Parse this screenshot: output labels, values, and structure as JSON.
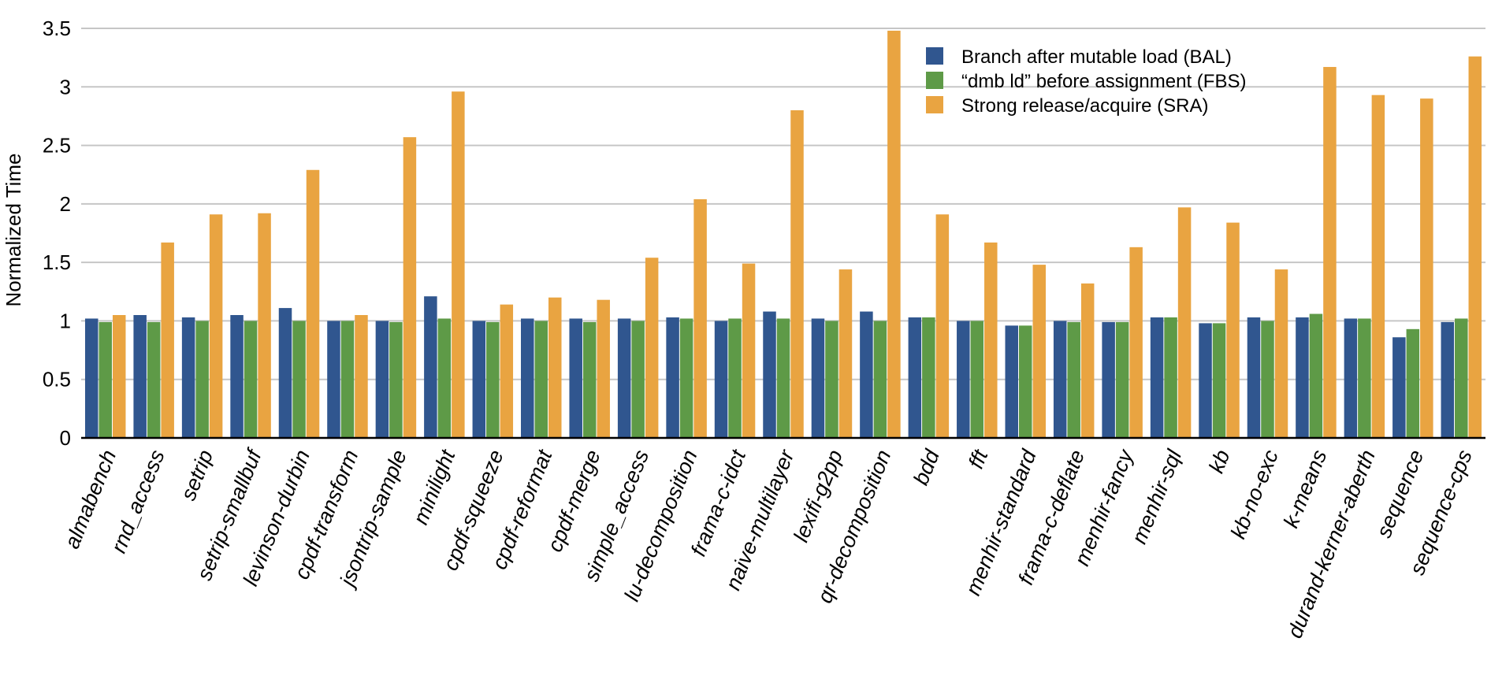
{
  "chart_data": {
    "type": "bar",
    "ylabel": "Normalized Time",
    "xlabel": "",
    "ylim": [
      0,
      3.5
    ],
    "yticks": [
      0,
      0.5,
      1,
      1.5,
      2,
      2.5,
      3,
      3.5
    ],
    "ytick_labels": [
      "0",
      "0.5",
      "1",
      "1.5",
      "2",
      "2.5",
      "3",
      "3.5"
    ],
    "grid": true,
    "legend_position": "top-right",
    "categories": [
      "almabench",
      "rnd_access",
      "setrip",
      "setrip-smallbuf",
      "levinson-durbin",
      "cpdf-transform",
      "jsontrip-sample",
      "minilight",
      "cpdf-squeeze",
      "cpdf-reformat",
      "cpdf-merge",
      "simple_access",
      "lu-decomposition",
      "frama-c-idct",
      "naive-multilayer",
      "lexifi-g2pp",
      "qr-decomposition",
      "bdd",
      "fft",
      "menhir-standard",
      "frama-c-deflate",
      "menhir-fancy",
      "menhir-sql",
      "kb",
      "kb-no-exc",
      "k-means",
      "durand-kerner-aberth",
      "sequence",
      "sequence-cps"
    ],
    "series": [
      {
        "name": "Branch after mutable load (BAL)",
        "color": "#30568f",
        "values": [
          1.02,
          1.05,
          1.03,
          1.05,
          1.11,
          1.0,
          1.0,
          1.21,
          1.0,
          1.02,
          1.02,
          1.02,
          1.03,
          1.0,
          1.08,
          1.02,
          1.08,
          1.03,
          1.0,
          0.96,
          1.0,
          0.99,
          1.03,
          0.98,
          1.03,
          1.03,
          1.02,
          0.86,
          0.99
        ]
      },
      {
        "name": "“dmb ld” before assignment (FBS)",
        "color": "#5e9a47",
        "values": [
          0.99,
          0.99,
          1.0,
          1.0,
          1.0,
          1.0,
          0.99,
          1.02,
          0.99,
          1.0,
          0.99,
          1.0,
          1.02,
          1.02,
          1.02,
          1.0,
          1.0,
          1.03,
          1.0,
          0.96,
          0.99,
          0.99,
          1.03,
          0.98,
          1.0,
          1.06,
          1.02,
          0.93,
          1.02
        ]
      },
      {
        "name": "Strong release/acquire (SRA)",
        "color": "#e9a441",
        "values": [
          1.05,
          1.67,
          1.91,
          1.92,
          2.29,
          1.05,
          2.57,
          2.96,
          1.14,
          1.2,
          1.18,
          1.54,
          2.04,
          1.49,
          2.8,
          1.44,
          3.48,
          1.91,
          1.67,
          1.48,
          1.32,
          1.63,
          1.97,
          1.84,
          1.44,
          3.17,
          2.93,
          2.9,
          3.26
        ]
      }
    ]
  }
}
